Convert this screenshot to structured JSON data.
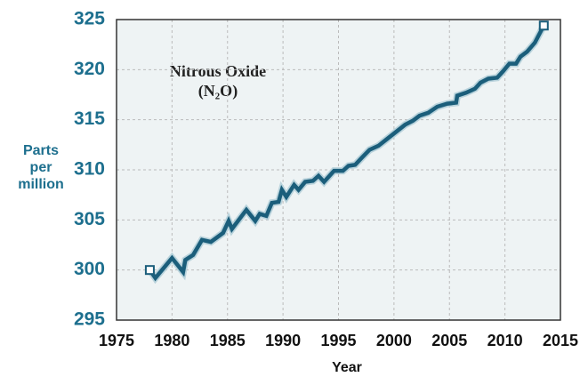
{
  "chart_data": {
    "type": "line",
    "annotation": [
      "Nitrous Oxide",
      "(N₂O)"
    ],
    "xlabel": "Year",
    "ylabel": [
      "Parts",
      "per",
      "million"
    ],
    "x": [
      1978.0,
      1978.5,
      1980.0,
      1981.0,
      1981.2,
      1981.9,
      1982.7,
      1983.5,
      1984.6,
      1985.1,
      1985.4,
      1986.7,
      1987.5,
      1987.9,
      1988.5,
      1989.0,
      1989.6,
      1989.9,
      1990.3,
      1991.0,
      1991.4,
      1992.0,
      1992.7,
      1993.2,
      1993.7,
      1994.6,
      1995.4,
      1995.9,
      1996.5,
      1997.1,
      1997.8,
      1998.6,
      1999.4,
      2000.2,
      2001.0,
      2001.7,
      2002.3,
      2003.1,
      2003.9,
      2004.8,
      2005.6,
      2005.7,
      2006.5,
      2007.3,
      2007.8,
      2008.5,
      2009.3,
      2009.8,
      2010.4,
      2011.0,
      2011.4,
      2012.0,
      2012.7,
      2013.5
    ],
    "series": [
      {
        "name": "N2O",
        "color": "#1b5e7b",
        "values": [
          300.0,
          299.2,
          301.2,
          299.8,
          301.0,
          301.5,
          303.0,
          302.8,
          303.7,
          304.9,
          304.1,
          306.0,
          304.9,
          305.6,
          305.4,
          306.7,
          306.8,
          308.0,
          307.3,
          308.5,
          308.0,
          308.8,
          308.9,
          309.4,
          308.8,
          309.9,
          309.9,
          310.4,
          310.5,
          311.2,
          312.0,
          312.4,
          313.1,
          313.8,
          314.5,
          314.9,
          315.4,
          315.7,
          316.3,
          316.6,
          316.7,
          317.4,
          317.7,
          318.1,
          318.7,
          319.1,
          319.2,
          319.8,
          320.6,
          320.6,
          321.3,
          321.8,
          322.7,
          324.4
        ]
      }
    ],
    "endpoint_markers": true,
    "xlim": [
      1975,
      2015
    ],
    "xticks": [
      1975,
      1980,
      1985,
      1990,
      1995,
      2000,
      2005,
      2010,
      2015
    ],
    "ylim": [
      295,
      325
    ],
    "yticks": [
      295,
      300,
      305,
      310,
      315,
      320,
      325
    ],
    "grid": true
  }
}
